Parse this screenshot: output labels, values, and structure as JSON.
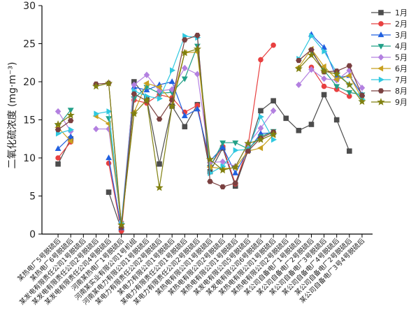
{
  "chart_data": {
    "type": "line",
    "title": "",
    "xlabel": "",
    "ylabel": "二氧化硫浓度 (mg·m⁻³)",
    "ylim": [
      0,
      30
    ],
    "yticks": [
      0,
      5,
      10,
      15,
      20,
      25,
      30
    ],
    "grid": false,
    "legend_position": "top-right",
    "categories": [
      "某热电厂5号脱硫后",
      "某热电厂6号脱硫后",
      "某发电有限责任公司1号脱硫后",
      "某发电有限责任公司2号脱硫后",
      "某发电有限责任公司4号脱硫后",
      "河南某热电厂1号脱硫后",
      "河南某实业有限公司1号机组",
      "河南某电力有限公司1号脱硫后",
      "某电力有限责任公司2号脱硫后",
      "某电力有限公司1号脱硫后",
      "某电力有限责任公司1号脱硫后",
      "某电力有限责任公司2号脱硫后",
      "某热电有限公司1号脱硫后",
      "某热电有限公司2号脱硫后",
      "某热电有限公司1号脱硫后",
      "某发电有限公司5号脱硫后",
      "某发电有限公司6号脱硫后",
      "某热电有限公司1号脱硫后",
      "某热电有限公司2号脱硫后",
      "某公司自备电厂1号脱硫后",
      "某公司自备电厂2号脱硫后",
      "某公司自备电厂3号脱硫后",
      "某公司自备电厂4号脱硫后",
      "某公司自备电厂2号脱硫后",
      "某公司自备电厂3号4号脱硫后"
    ],
    "series": [
      {
        "name": "1月",
        "color": "#4d4d4d",
        "marker": "square",
        "values": [
          9.2,
          12.5,
          null,
          null,
          5.5,
          0.6,
          20.0,
          17.8,
          9.2,
          16.8,
          14.1,
          17.0,
          8.2,
          11.3,
          6.3,
          11.0,
          16.2,
          17.5,
          15.2,
          13.6,
          14.4,
          18.3,
          15.0,
          10.9,
          null
        ]
      },
      {
        "name": "2月",
        "color": "#e84040",
        "marker": "circle",
        "values": [
          10.0,
          12.1,
          null,
          null,
          9.3,
          0.4,
          17.6,
          17.2,
          18.3,
          17.9,
          16.0,
          16.9,
          8.9,
          11.5,
          6.6,
          11.6,
          22.9,
          24.8,
          null,
          null,
          21.9,
          19.4,
          19.0,
          18.1,
          null
        ]
      },
      {
        "name": "3月",
        "color": "#2060e0",
        "marker": "triangle",
        "values": [
          11.2,
          12.8,
          null,
          null,
          10.0,
          0.8,
          19.3,
          18.9,
          19.6,
          20.0,
          15.5,
          16.4,
          9.6,
          11.4,
          8.0,
          11.0,
          13.2,
          13.3,
          null,
          null,
          26.2,
          24.5,
          20.5,
          20.8,
          18.3
        ]
      },
      {
        "name": "4月",
        "color": "#22a088",
        "marker": "triangle-down",
        "values": [
          14.2,
          16.3,
          null,
          null,
          15.2,
          1.1,
          17.8,
          19.3,
          18.5,
          18.6,
          20.4,
          24.7,
          8.8,
          12.0,
          12.0,
          11.2,
          12.8,
          13.5,
          null,
          null,
          24.0,
          21.5,
          19.4,
          18.6,
          18.3
        ]
      },
      {
        "name": "5月",
        "color": "#b380e0",
        "marker": "diamond",
        "values": [
          16.1,
          13.5,
          null,
          13.8,
          13.8,
          1.6,
          19.6,
          20.9,
          18.8,
          19.0,
          21.8,
          21.0,
          9.4,
          9.5,
          8.9,
          11.8,
          13.9,
          16.2,
          null,
          19.6,
          21.6,
          20.4,
          20.2,
          21.5,
          19.2
        ]
      },
      {
        "name": "6月",
        "color": "#c8a020",
        "marker": "triangle-left",
        "values": [
          14.0,
          12.2,
          null,
          15.5,
          14.5,
          1.3,
          16.0,
          19.8,
          19.3,
          17.5,
          23.8,
          23.9,
          8.8,
          8.6,
          8.7,
          10.9,
          11.3,
          13.0,
          null,
          21.9,
          24.3,
          22.0,
          20.3,
          20.8,
          17.8
        ]
      },
      {
        "name": "7月",
        "color": "#30c8e0",
        "marker": "triangle-right",
        "values": [
          13.2,
          13.7,
          null,
          15.8,
          16.1,
          1.4,
          18.8,
          18.1,
          17.8,
          21.5,
          26.0,
          25.8,
          8.0,
          8.9,
          11.0,
          11.1,
          15.4,
          12.4,
          null,
          23.0,
          26.0,
          24.0,
          21.2,
          19.6,
          17.7
        ]
      },
      {
        "name": "8月",
        "color": "#7a4040",
        "marker": "hexagon",
        "values": [
          13.7,
          14.9,
          null,
          19.7,
          19.8,
          0.9,
          18.4,
          17.5,
          15.1,
          17.6,
          25.5,
          26.1,
          6.9,
          6.2,
          6.7,
          10.9,
          12.6,
          13.4,
          null,
          22.8,
          24.2,
          21.3,
          21.4,
          22.1,
          18.2
        ]
      },
      {
        "name": "9月",
        "color": "#808010",
        "marker": "star",
        "values": [
          14.4,
          15.6,
          null,
          19.4,
          19.8,
          1.2,
          15.8,
          17.6,
          6.1,
          16.8,
          23.8,
          24.3,
          9.8,
          8.4,
          8.8,
          11.9,
          12.4,
          13.1,
          null,
          21.7,
          23.5,
          21.4,
          21.0,
          19.6,
          17.4
        ]
      }
    ]
  }
}
